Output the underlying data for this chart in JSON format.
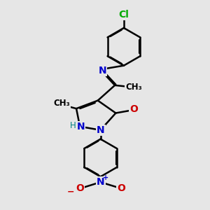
{
  "bg_color": "#e6e6e6",
  "bond_color": "#000000",
  "bond_width": 1.8,
  "atom_colors": {
    "N": "#0000cc",
    "O": "#cc0000",
    "Cl": "#00aa00",
    "H": "#008080",
    "C": "#000000"
  },
  "font_size_atom": 10,
  "font_size_small": 8.5
}
